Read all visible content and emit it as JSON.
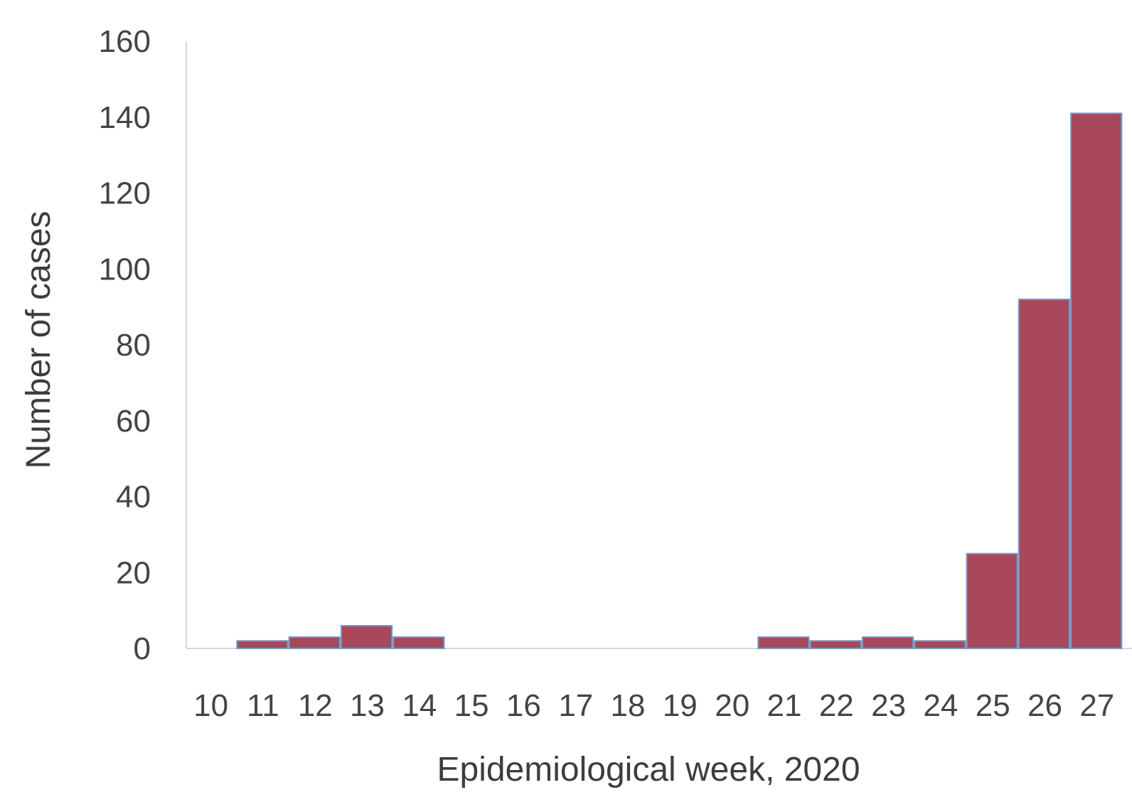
{
  "chart_data": {
    "type": "bar",
    "title": "",
    "xlabel": "Epidemiological week, 2020",
    "ylabel": "Number of cases",
    "categories": [
      "10",
      "11",
      "12",
      "13",
      "14",
      "15",
      "16",
      "17",
      "18",
      "19",
      "20",
      "21",
      "22",
      "23",
      "24",
      "25",
      "26",
      "27"
    ],
    "values": [
      0,
      2,
      3,
      6,
      3,
      0,
      0,
      0,
      0,
      0,
      0,
      3,
      2,
      3,
      2,
      25,
      92,
      141
    ],
    "yticks": [
      0,
      20,
      40,
      60,
      80,
      100,
      120,
      140,
      160
    ],
    "ylim": [
      0,
      160
    ],
    "grid": false,
    "legend": "none",
    "colors": {
      "bar": "#a8485a",
      "bar_edge": "#6f9ec8",
      "axis": "#d6d6d6"
    }
  }
}
